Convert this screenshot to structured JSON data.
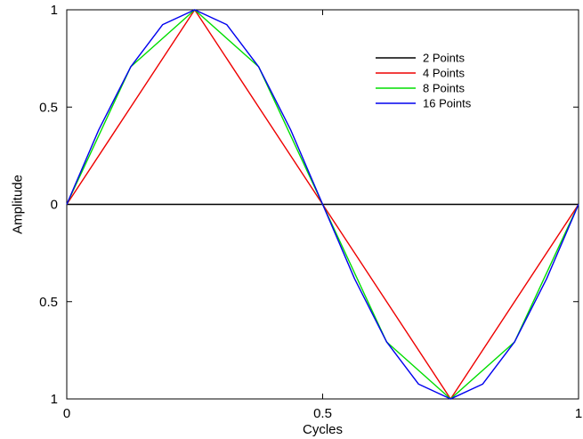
{
  "chart_data": {
    "type": "line",
    "title": "",
    "xlabel": "Cycles",
    "ylabel": "Amplitude",
    "xlim": [
      0,
      1
    ],
    "ylim": [
      -1,
      1
    ],
    "grid": false,
    "legend_position": "top-right",
    "x_ticks": [
      {
        "value": 0,
        "label": "0"
      },
      {
        "value": 0.5,
        "label": "0.5"
      },
      {
        "value": 1,
        "label": "1"
      }
    ],
    "y_ticks": [
      {
        "value": 1,
        "label": "1"
      },
      {
        "value": 0.5,
        "label": "0.5"
      },
      {
        "value": 0,
        "label": "0"
      },
      {
        "value": -0.5,
        "label": "0.5"
      },
      {
        "value": -1,
        "label": "1"
      }
    ],
    "series": [
      {
        "name": "2 Points",
        "color": "#000000",
        "x": [
          0,
          0.5,
          1
        ],
        "y": [
          0,
          0,
          0
        ]
      },
      {
        "name": "4 Points",
        "color": "#ee0000",
        "x": [
          0,
          0.25,
          0.5,
          0.75,
          1
        ],
        "y": [
          0,
          1,
          0,
          -1,
          0
        ]
      },
      {
        "name": "8 Points",
        "color": "#00dd00",
        "x": [
          0,
          0.125,
          0.25,
          0.375,
          0.5,
          0.625,
          0.75,
          0.875,
          1
        ],
        "y": [
          0,
          0.707,
          1,
          0.707,
          0,
          -0.707,
          -1,
          -0.707,
          0
        ]
      },
      {
        "name": "16 Points",
        "color": "#0000ee",
        "x": [
          0,
          0.0625,
          0.125,
          0.1875,
          0.25,
          0.3125,
          0.375,
          0.4375,
          0.5,
          0.5625,
          0.625,
          0.6875,
          0.75,
          0.8125,
          0.875,
          0.9375,
          1
        ],
        "y": [
          0,
          0.383,
          0.707,
          0.924,
          1,
          0.924,
          0.707,
          0.383,
          0,
          -0.383,
          -0.707,
          -0.924,
          -1,
          -0.924,
          -0.707,
          -0.383,
          0
        ]
      }
    ]
  }
}
